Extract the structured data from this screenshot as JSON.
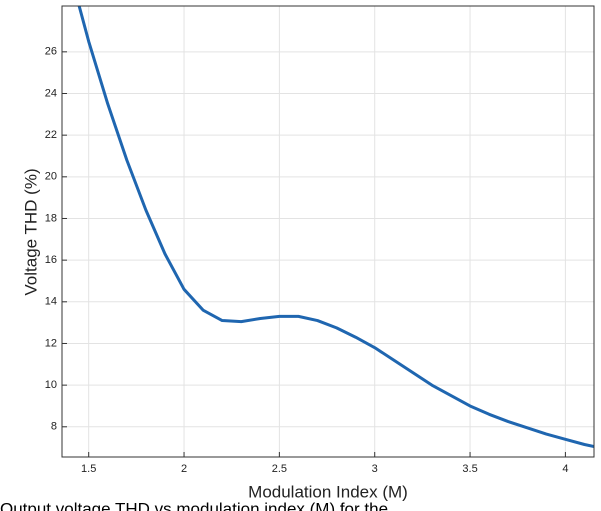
{
  "chart_data": {
    "type": "line",
    "x_label": "Modulation Index (M)",
    "y_label": "Voltage THD (%)",
    "caption": "Output voltage THD vs modulation index (M) for the",
    "x": [
      1.45,
      1.5,
      1.6,
      1.7,
      1.8,
      1.9,
      2.0,
      2.1,
      2.2,
      2.3,
      2.4,
      2.5,
      2.6,
      2.7,
      2.8,
      2.9,
      3.0,
      3.1,
      3.2,
      3.3,
      3.4,
      3.5,
      3.6,
      3.7,
      3.8,
      3.9,
      4.0,
      4.1,
      4.15
    ],
    "series": [
      {
        "name": "THD",
        "color": "#1f66b0",
        "values": [
          28.2,
          26.5,
          23.5,
          20.8,
          18.4,
          16.3,
          14.6,
          13.6,
          13.1,
          13.05,
          13.2,
          13.3,
          13.3,
          13.1,
          12.75,
          12.3,
          11.8,
          11.2,
          10.6,
          10.0,
          9.5,
          9.0,
          8.6,
          8.25,
          7.95,
          7.65,
          7.4,
          7.15,
          7.05
        ]
      }
    ],
    "xlim": [
      1.36,
      4.15
    ],
    "ylim": [
      6.55,
      28.2
    ],
    "xticks": [
      1.5,
      2,
      2.5,
      3,
      3.5,
      4
    ],
    "yticks": [
      8,
      10,
      12,
      14,
      16,
      18,
      20,
      22,
      24,
      26
    ],
    "grid": true
  }
}
